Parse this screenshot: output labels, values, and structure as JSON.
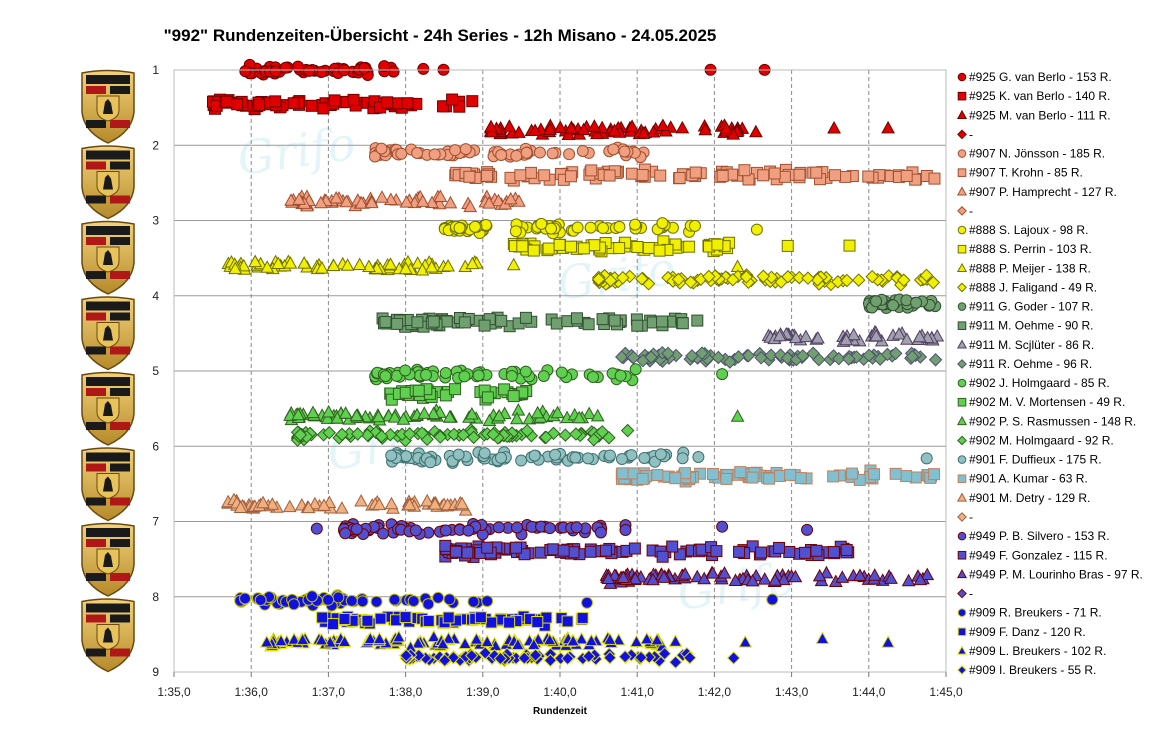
{
  "chart_data": {
    "type": "scatter",
    "title": "\"992\" Rundenzeiten-Übersicht - 24h Series - 12h Misano - 24.05.2025",
    "xlabel": "Rundenzeit",
    "ylabel": "",
    "x_tick_labels": [
      "1:35,0",
      "1:36,0",
      "1:37,0",
      "1:38,0",
      "1:39,0",
      "1:40,0",
      "1:41,0",
      "1:42,0",
      "1:43,0",
      "1:44,0",
      "1:45,0"
    ],
    "x_ticks_seconds": [
      95,
      96,
      97,
      98,
      99,
      100,
      101,
      102,
      103,
      104,
      105
    ],
    "xlim_seconds": [
      95,
      105
    ],
    "y_tick_labels": [
      "1",
      "2",
      "3",
      "4",
      "5",
      "6",
      "7",
      "8",
      "9"
    ],
    "ylim": [
      1,
      9
    ],
    "y_inverted": true,
    "grid": "vertical dashed, horizontal solid",
    "legend_position": "right",
    "logos": 8,
    "series": [
      {
        "name": "#925 G. van Berlo - 153 R.",
        "marker": "circle",
        "fill": "#e00000",
        "stroke": "#700000",
        "y": 1.0,
        "x_min": 95.9,
        "x_max": 98.6,
        "outliers": [
          101.95,
          102.65
        ]
      },
      {
        "name": "#925 K. van Berlo - 140 R.",
        "marker": "square",
        "fill": "#e00000",
        "stroke": "#700000",
        "y": 1.45,
        "x_min": 95.5,
        "x_max": 98.9,
        "outliers": []
      },
      {
        "name": "#925 M. van Berlo - 111 R.",
        "marker": "triangle",
        "fill": "#e00000",
        "stroke": "#700000",
        "y": 1.8,
        "x_min": 99.1,
        "x_max": 102.7,
        "outliers": [
          103.55,
          104.25
        ]
      },
      {
        "name": "-",
        "marker": "diamond",
        "fill": "#e00000",
        "stroke": "#700000",
        "y": null,
        "x_min": null,
        "x_max": null,
        "outliers": []
      },
      {
        "name": "#907 N. Jönsson - 185 R.",
        "marker": "circle",
        "fill": "#f0a080",
        "stroke": "#a05030",
        "y": 2.1,
        "x_min": 97.6,
        "x_max": 101.2,
        "outliers": []
      },
      {
        "name": "#907 T. Krohn - 85 R.",
        "marker": "square",
        "fill": "#f0a080",
        "stroke": "#a05030",
        "y": 2.4,
        "x_min": 98.6,
        "x_max": 104.9,
        "outliers": []
      },
      {
        "name": "#907 P. Hamprecht - 127 R.",
        "marker": "triangle",
        "fill": "#f0a080",
        "stroke": "#a05030",
        "y": 2.75,
        "x_min": 96.5,
        "x_max": 99.6,
        "outliers": []
      },
      {
        "name": "-",
        "marker": "diamond",
        "fill": "#f0a080",
        "stroke": "#a05030",
        "y": null,
        "x_min": null,
        "x_max": null,
        "outliers": []
      },
      {
        "name": "#888 S. Lajoux - 98 R.",
        "marker": "circle",
        "fill": "#f0f000",
        "stroke": "#707000",
        "y": 3.1,
        "x_min": 98.5,
        "x_max": 101.8,
        "outliers": [
          102.55
        ]
      },
      {
        "name": "#888 S. Perrin - 103 R.",
        "marker": "square",
        "fill": "#f0f000",
        "stroke": "#707000",
        "y": 3.35,
        "x_min": 99.4,
        "x_max": 102.2,
        "outliers": [
          102.95,
          103.75
        ]
      },
      {
        "name": "#888 P. Meijer - 138 R.",
        "marker": "triangle",
        "fill": "#f0f000",
        "stroke": "#707000",
        "y": 3.6,
        "x_min": 95.7,
        "x_max": 99.0,
        "outliers": [
          99.4,
          102.3
        ]
      },
      {
        "name": "#888 J. Faligand - 49 R.",
        "marker": "diamond",
        "fill": "#f0f000",
        "stroke": "#707000",
        "y": 3.78,
        "x_min": 100.5,
        "x_max": 104.9,
        "outliers": []
      },
      {
        "name": "#911 G. Goder - 107 R.",
        "marker": "circle",
        "fill": "#70a070",
        "stroke": "#305030",
        "y": 4.1,
        "x_min": 104.0,
        "x_max": 104.9,
        "outliers": []
      },
      {
        "name": "#911 M. Oehme - 90 R.",
        "marker": "square",
        "fill": "#70a070",
        "stroke": "#305030",
        "y": 4.35,
        "x_min": 97.7,
        "x_max": 101.8,
        "outliers": []
      },
      {
        "name": "#911 M. Scjlüter - 86 R.",
        "marker": "triangle",
        "fill": "#a0a0b0",
        "stroke": "#504060",
        "y": 4.55,
        "x_min": 102.7,
        "x_max": 104.9,
        "outliers": []
      },
      {
        "name": "#911 R. Oehme - 96 R.",
        "marker": "diamond",
        "fill": "#70a070",
        "stroke": "#505070",
        "y": 4.82,
        "x_min": 100.8,
        "x_max": 104.9,
        "outliers": []
      },
      {
        "name": "#902 J. Holmgaard - 85 R.",
        "marker": "circle",
        "fill": "#60d050",
        "stroke": "#306020",
        "y": 5.05,
        "x_min": 97.6,
        "x_max": 101.0,
        "outliers": [
          102.1
        ]
      },
      {
        "name": "#902 M. V. Mortensen - 49 R.",
        "marker": "square",
        "fill": "#60d050",
        "stroke": "#306020",
        "y": 5.3,
        "x_min": 97.8,
        "x_max": 99.9,
        "outliers": []
      },
      {
        "name": "#902 P. S. Rasmussen - 148 R.",
        "marker": "triangle",
        "fill": "#60d050",
        "stroke": "#306020",
        "y": 5.6,
        "x_min": 96.5,
        "x_max": 100.5,
        "outliers": [
          102.3
        ]
      },
      {
        "name": "#902 M. Holmgaard - 92 R.",
        "marker": "diamond",
        "fill": "#60d050",
        "stroke": "#306020",
        "y": 5.85,
        "x_min": 96.6,
        "x_max": 100.9,
        "outliers": []
      },
      {
        "name": "#901 F. Duffieux - 175 R.",
        "marker": "circle",
        "fill": "#90c0c0",
        "stroke": "#407070",
        "y": 6.15,
        "x_min": 97.8,
        "x_max": 101.8,
        "outliers": [
          104.75
        ]
      },
      {
        "name": "#901 A. Kumar - 63 R.",
        "marker": "square",
        "fill": "#80c0d0",
        "stroke": "#c08060",
        "y": 6.4,
        "x_min": 100.8,
        "x_max": 104.9,
        "outliers": []
      },
      {
        "name": "#901 M. Detry - 129 R.",
        "marker": "triangle",
        "fill": "#f0b080",
        "stroke": "#a06040",
        "y": 6.78,
        "x_min": 95.7,
        "x_max": 98.9,
        "outliers": []
      },
      {
        "name": "-",
        "marker": "diamond",
        "fill": "#f0b080",
        "stroke": "#a06040",
        "y": null,
        "x_min": null,
        "x_max": null,
        "outliers": []
      },
      {
        "name": "#949 P. B. Silvero - 153 R.",
        "marker": "circle",
        "fill": "#5050d0",
        "stroke": "#700000",
        "y": 7.1,
        "x_min": 97.2,
        "x_max": 100.9,
        "outliers": [
          96.85,
          102.1,
          103.2
        ]
      },
      {
        "name": "#949 F. Gonzalez - 115 R.",
        "marker": "square",
        "fill": "#5050d0",
        "stroke": "#700000",
        "y": 7.4,
        "x_min": 98.5,
        "x_max": 103.8,
        "outliers": []
      },
      {
        "name": "#949 P. M. Lourinho Bras - 97 R.",
        "marker": "triangle",
        "fill": "#5050d0",
        "stroke": "#700000",
        "y": 7.75,
        "x_min": 100.6,
        "x_max": 104.9,
        "outliers": []
      },
      {
        "name": "-",
        "marker": "diamond",
        "fill": "#5050d0",
        "stroke": "#700000",
        "y": null,
        "x_min": null,
        "x_max": null,
        "outliers": []
      },
      {
        "name": "#909 R. Breukers - 71 R.",
        "marker": "circle",
        "fill": "#1010e0",
        "stroke": "#c0c000",
        "y": 8.05,
        "x_min": 95.85,
        "x_max": 99.1,
        "outliers": [
          100.35,
          102.75
        ]
      },
      {
        "name": "#909 F. Danz - 120 R.",
        "marker": "square",
        "fill": "#1010e0",
        "stroke": "#e0e000",
        "y": 8.3,
        "x_min": 96.9,
        "x_max": 100.6,
        "outliers": []
      },
      {
        "name": "#909 L. Breukers - 102 R.",
        "marker": "triangle",
        "fill": "#1010e0",
        "stroke": "#e0e000",
        "y": 8.6,
        "x_min": 96.2,
        "x_max": 101.5,
        "outliers": [
          102.4,
          103.4,
          104.25
        ]
      },
      {
        "name": "#909 I. Breukers - 55 R.",
        "marker": "diamond",
        "fill": "#1010e0",
        "stroke": "#e0e000",
        "y": 8.8,
        "x_min": 98.0,
        "x_max": 101.7,
        "outliers": [
          102.25
        ]
      }
    ]
  }
}
